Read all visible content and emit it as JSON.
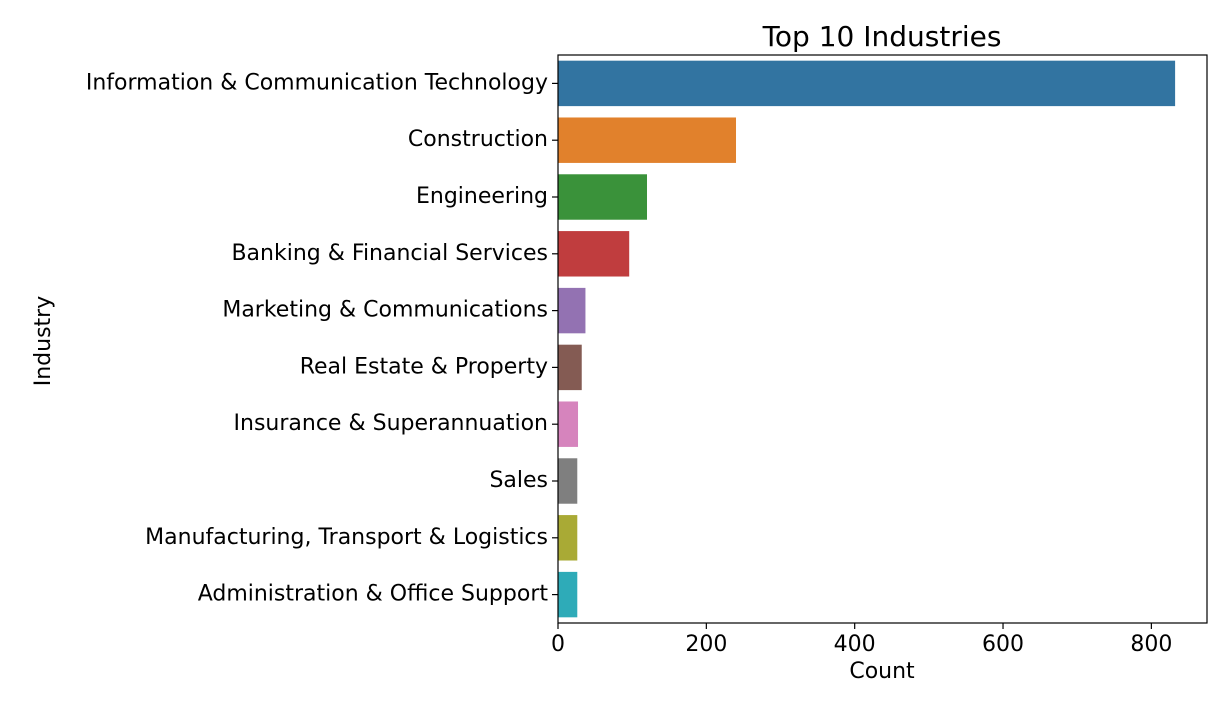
{
  "chart_data": {
    "type": "bar",
    "orientation": "horizontal",
    "title": "Top 10 Industries",
    "xlabel": "Count",
    "ylabel": "Industry",
    "xlim": [
      0,
      875
    ],
    "xticks": [
      0,
      200,
      400,
      600,
      800
    ],
    "grid": false,
    "categories": [
      "Information & Communication Technology",
      "Construction",
      "Engineering",
      "Banking & Financial Services",
      "Marketing & Communications",
      "Real Estate & Property",
      "Insurance & Superannuation",
      "Sales",
      "Manufacturing, Transport & Logistics",
      "Administration & Office Support"
    ],
    "values": [
      832,
      240,
      120,
      96,
      37,
      32,
      27,
      26,
      26,
      26
    ],
    "colors": [
      "#3274a1",
      "#e1812c",
      "#3a923a",
      "#c03d3e",
      "#9372b2",
      "#845b53",
      "#d684bd",
      "#7f7f7f",
      "#a9aa35",
      "#2eabb8"
    ]
  }
}
